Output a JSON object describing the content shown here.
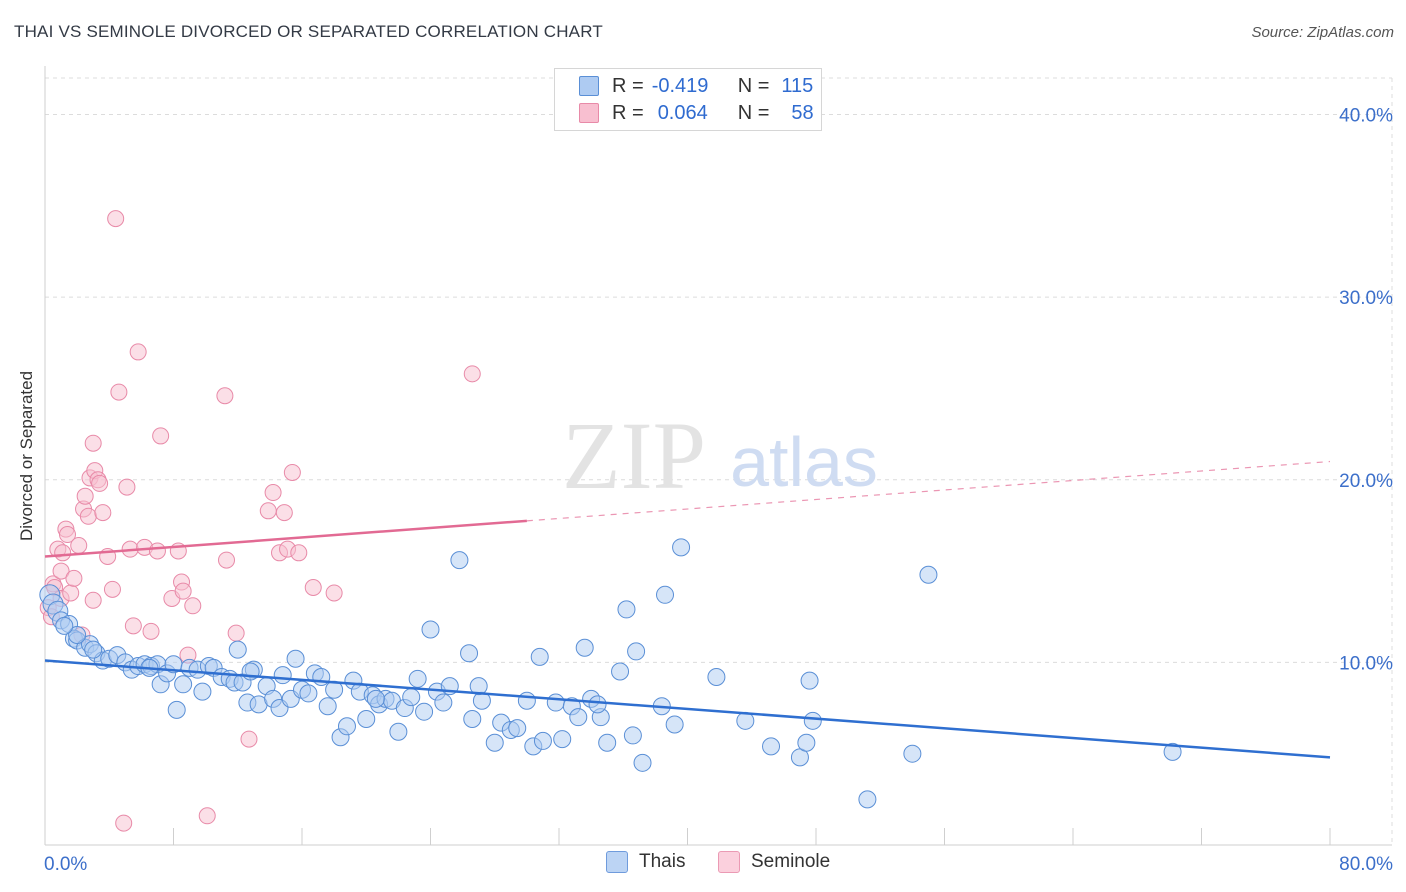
{
  "title": "THAI VS SEMINOLE DIVORCED OR SEPARATED CORRELATION CHART",
  "source": "Source: ZipAtlas.com",
  "watermark": {
    "zip": "ZIP",
    "atlas": "atlas"
  },
  "legend_top": {
    "rows": [
      {
        "r_label": "R =",
        "r_value": "-0.419",
        "n_label": "N =",
        "n_value": "115"
      },
      {
        "r_label": "R =",
        "r_value": "0.064",
        "n_label": "N =",
        "n_value": "58"
      }
    ]
  },
  "colors": {
    "thai_fill": "#aecbf2",
    "thai_stroke": "#5a8fd6",
    "thai_line": "#2f6fd0",
    "seminole_fill": "#f8bfd0",
    "seminole_stroke": "#e88aa8",
    "seminole_line": "#e26a93",
    "tick_label": "#3c6fca",
    "grid": "#dcdcdc"
  },
  "chart_data": {
    "type": "scatter",
    "title": "THAI VS SEMINOLE DIVORCED OR SEPARATED CORRELATION CHART",
    "xlabel": "",
    "ylabel": "Divorced or Separated",
    "xlim": [
      0,
      80
    ],
    "ylim": [
      0,
      42
    ],
    "x_tick_labels": [
      "0.0%",
      "80.0%"
    ],
    "y_ticks": [
      10,
      20,
      30,
      40
    ],
    "y_tick_labels": [
      "10.0%",
      "20.0%",
      "30.0%",
      "40.0%"
    ],
    "grid": true,
    "legend": "bottom-center",
    "series": [
      {
        "name": "Thais",
        "r": -0.419,
        "n": 115,
        "trend": {
          "x": [
            0,
            80
          ],
          "y": [
            10.1,
            4.8
          ],
          "solid_to_x": 80
        },
        "points": [
          [
            0.3,
            13.7
          ],
          [
            0.5,
            13.2
          ],
          [
            0.8,
            12.8
          ],
          [
            1.0,
            12.3
          ],
          [
            1.5,
            12.1
          ],
          [
            1.8,
            11.3
          ],
          [
            2.0,
            11.2
          ],
          [
            2.5,
            10.8
          ],
          [
            2.8,
            11.0
          ],
          [
            3.2,
            10.5
          ],
          [
            3.6,
            10.1
          ],
          [
            4.0,
            10.2
          ],
          [
            4.5,
            10.4
          ],
          [
            5.0,
            10.0
          ],
          [
            5.4,
            9.6
          ],
          [
            5.8,
            9.8
          ],
          [
            6.2,
            9.9
          ],
          [
            6.6,
            9.8
          ],
          [
            7.0,
            9.9
          ],
          [
            7.2,
            8.8
          ],
          [
            7.6,
            9.4
          ],
          [
            8.0,
            9.9
          ],
          [
            8.2,
            7.4
          ],
          [
            8.6,
            8.8
          ],
          [
            9.0,
            9.7
          ],
          [
            9.5,
            9.6
          ],
          [
            9.8,
            8.4
          ],
          [
            10.2,
            9.8
          ],
          [
            10.5,
            9.7
          ],
          [
            11.0,
            9.2
          ],
          [
            11.5,
            9.1
          ],
          [
            11.8,
            8.9
          ],
          [
            12.0,
            10.7
          ],
          [
            12.3,
            8.9
          ],
          [
            12.6,
            7.8
          ],
          [
            13.0,
            9.6
          ],
          [
            13.3,
            7.7
          ],
          [
            13.8,
            8.7
          ],
          [
            14.2,
            8.0
          ],
          [
            14.6,
            7.5
          ],
          [
            14.8,
            9.3
          ],
          [
            15.3,
            8.0
          ],
          [
            15.6,
            10.2
          ],
          [
            16.0,
            8.5
          ],
          [
            16.4,
            8.3
          ],
          [
            16.8,
            9.4
          ],
          [
            17.2,
            9.2
          ],
          [
            17.6,
            7.6
          ],
          [
            18.0,
            8.5
          ],
          [
            18.4,
            5.9
          ],
          [
            18.8,
            6.5
          ],
          [
            19.2,
            9.0
          ],
          [
            19.6,
            8.4
          ],
          [
            20.0,
            6.9
          ],
          [
            20.4,
            8.2
          ],
          [
            20.8,
            7.7
          ],
          [
            21.2,
            8.0
          ],
          [
            21.6,
            7.9
          ],
          [
            22.0,
            6.2
          ],
          [
            22.4,
            7.5
          ],
          [
            22.8,
            8.1
          ],
          [
            23.2,
            9.1
          ],
          [
            23.6,
            7.3
          ],
          [
            24.0,
            11.8
          ],
          [
            24.4,
            8.4
          ],
          [
            24.8,
            7.8
          ],
          [
            25.2,
            8.7
          ],
          [
            25.8,
            15.6
          ],
          [
            26.4,
            10.5
          ],
          [
            26.6,
            6.9
          ],
          [
            27.2,
            7.9
          ],
          [
            28.0,
            5.6
          ],
          [
            28.4,
            6.7
          ],
          [
            29.0,
            6.3
          ],
          [
            29.4,
            6.4
          ],
          [
            30.0,
            7.9
          ],
          [
            30.4,
            5.4
          ],
          [
            30.8,
            10.3
          ],
          [
            31.0,
            5.7
          ],
          [
            31.8,
            7.8
          ],
          [
            32.2,
            5.8
          ],
          [
            32.8,
            7.6
          ],
          [
            33.2,
            7.0
          ],
          [
            33.6,
            10.8
          ],
          [
            34.0,
            8.0
          ],
          [
            34.6,
            7.0
          ],
          [
            35.0,
            5.6
          ],
          [
            35.8,
            9.5
          ],
          [
            36.2,
            12.9
          ],
          [
            36.6,
            6.0
          ],
          [
            36.8,
            10.6
          ],
          [
            37.2,
            4.5
          ],
          [
            38.4,
            7.6
          ],
          [
            38.6,
            13.7
          ],
          [
            39.2,
            6.6
          ],
          [
            39.6,
            16.3
          ],
          [
            41.8,
            9.2
          ],
          [
            43.6,
            6.8
          ],
          [
            45.2,
            5.4
          ],
          [
            47.0,
            4.8
          ],
          [
            47.4,
            5.6
          ],
          [
            47.6,
            9.0
          ],
          [
            47.8,
            6.8
          ],
          [
            51.2,
            2.5
          ],
          [
            54.0,
            5.0
          ],
          [
            55.0,
            14.8
          ],
          [
            70.2,
            5.1
          ],
          [
            2.0,
            11.5
          ],
          [
            6.5,
            9.7
          ],
          [
            12.8,
            9.5
          ],
          [
            20.6,
            8.0
          ],
          [
            27.0,
            8.7
          ],
          [
            34.4,
            7.7
          ],
          [
            1.2,
            12.0
          ],
          [
            3.0,
            10.7
          ]
        ]
      },
      {
        "name": "Seminole",
        "r": 0.064,
        "n": 58,
        "trend": {
          "x": [
            0,
            80
          ],
          "y": [
            15.8,
            21.0
          ],
          "solid_to_x": 30
        },
        "points": [
          [
            0.2,
            13.0
          ],
          [
            0.4,
            12.5
          ],
          [
            0.5,
            14.3
          ],
          [
            0.6,
            14.1
          ],
          [
            0.8,
            16.2
          ],
          [
            1.0,
            15.0
          ],
          [
            1.0,
            13.5
          ],
          [
            1.1,
            16.0
          ],
          [
            1.3,
            17.3
          ],
          [
            1.4,
            17.0
          ],
          [
            1.6,
            13.8
          ],
          [
            1.8,
            14.6
          ],
          [
            2.1,
            16.4
          ],
          [
            2.3,
            11.5
          ],
          [
            2.4,
            18.4
          ],
          [
            2.5,
            19.1
          ],
          [
            2.7,
            18.0
          ],
          [
            2.8,
            20.1
          ],
          [
            3.0,
            13.4
          ],
          [
            3.0,
            22.0
          ],
          [
            3.1,
            20.5
          ],
          [
            3.3,
            20.0
          ],
          [
            3.4,
            19.8
          ],
          [
            3.6,
            18.2
          ],
          [
            3.9,
            15.8
          ],
          [
            4.2,
            14.0
          ],
          [
            4.4,
            34.3
          ],
          [
            4.6,
            24.8
          ],
          [
            4.9,
            1.2
          ],
          [
            5.1,
            19.6
          ],
          [
            5.3,
            16.2
          ],
          [
            5.5,
            12.0
          ],
          [
            5.8,
            27.0
          ],
          [
            6.2,
            16.3
          ],
          [
            6.6,
            11.7
          ],
          [
            7.0,
            16.1
          ],
          [
            7.2,
            22.4
          ],
          [
            7.9,
            13.5
          ],
          [
            8.3,
            16.1
          ],
          [
            8.5,
            14.4
          ],
          [
            8.6,
            13.9
          ],
          [
            8.9,
            10.4
          ],
          [
            9.2,
            13.1
          ],
          [
            10.1,
            1.6
          ],
          [
            11.2,
            24.6
          ],
          [
            11.3,
            15.6
          ],
          [
            11.9,
            11.6
          ],
          [
            12.7,
            5.8
          ],
          [
            13.9,
            18.3
          ],
          [
            14.2,
            19.3
          ],
          [
            14.6,
            16.0
          ],
          [
            14.9,
            18.2
          ],
          [
            15.1,
            16.2
          ],
          [
            15.4,
            20.4
          ],
          [
            15.8,
            16.0
          ],
          [
            16.7,
            14.1
          ],
          [
            18.0,
            13.8
          ],
          [
            26.6,
            25.8
          ]
        ]
      }
    ]
  },
  "legend_bottom": {
    "items": [
      "Thais",
      "Seminole"
    ]
  }
}
